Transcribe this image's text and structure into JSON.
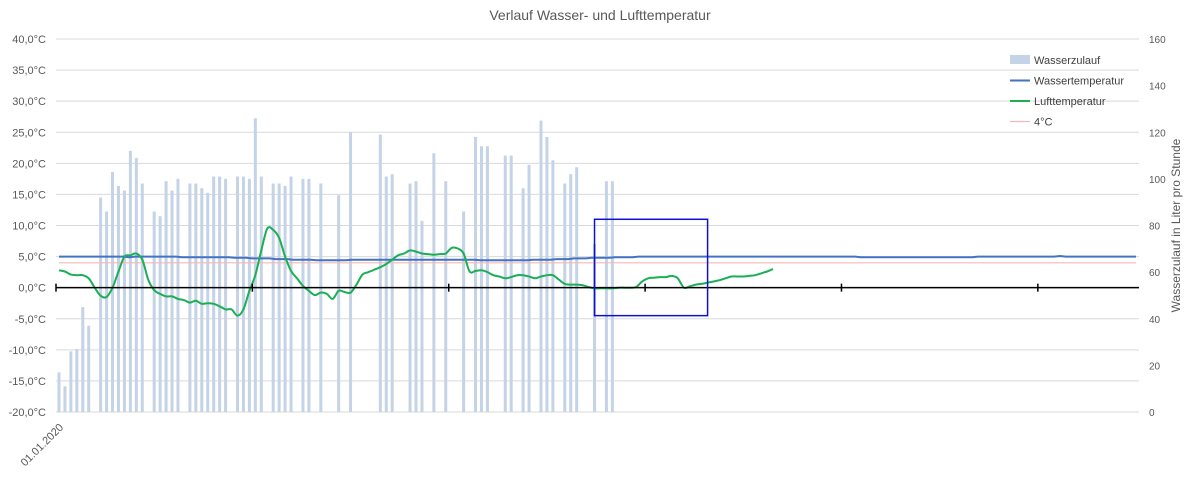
{
  "chart_data": {
    "type": "bar+line",
    "title": "Verlauf Wasser- und Lufttemperatur",
    "y2label": "Wasserzulauf in Liter pro Stunde",
    "ylim": [
      -20,
      40
    ],
    "y2lim": [
      0,
      160
    ],
    "yticks": [
      "40,0°C",
      "35,0°C",
      "30,0°C",
      "25,0°C",
      "20,0°C",
      "15,0°C",
      "10,0°C",
      "5,0°C",
      "0,0°C",
      "-5,0°C",
      "-10,0°C",
      "-15,0°C",
      "-20,0°C"
    ],
    "y2ticks": [
      "160",
      "140",
      "120",
      "100",
      "80",
      "60",
      "40",
      "20",
      "0"
    ],
    "xticks": [
      "01.01.2020"
    ],
    "grid": true,
    "legend_position": "top-right",
    "colors": {
      "wasserzulauf": "#c5d3e6",
      "wassertemperatur": "#4472c4",
      "lufttemperatur": "#1aaf54",
      "vier_grad": "#f4b8b8",
      "highlight": "#1010d0"
    },
    "series": [
      {
        "name": "Wasserzulauf",
        "axis": "right",
        "kind": "bar",
        "values": [
          17,
          11,
          26,
          27,
          45,
          37,
          0,
          92,
          86,
          103,
          97,
          95,
          112,
          109,
          98,
          0,
          86,
          84,
          99,
          95,
          100,
          0,
          98,
          98,
          96,
          94,
          101,
          101,
          100,
          0,
          101,
          101,
          100,
          126,
          101,
          0,
          98,
          98,
          97,
          101,
          0,
          100,
          100,
          0,
          98,
          0,
          0,
          93,
          0,
          120,
          0,
          0,
          0,
          0,
          119,
          101,
          102,
          0,
          0,
          98,
          99,
          82,
          0,
          111,
          0,
          99,
          0,
          0,
          86,
          0,
          118,
          114,
          114,
          0,
          0,
          110,
          110,
          0,
          96,
          106,
          0,
          125,
          118,
          108,
          0,
          98,
          102,
          105,
          0,
          0,
          72,
          0,
          99,
          99,
          0,
          0,
          0,
          0,
          0,
          0,
          0,
          0,
          0,
          0,
          0,
          0,
          0,
          0,
          0,
          0,
          0,
          0,
          0,
          0,
          0,
          0,
          0,
          0,
          0,
          0,
          0,
          0,
          0,
          0,
          0,
          0,
          0,
          0,
          0,
          0,
          0,
          0,
          0,
          0,
          0,
          0,
          0,
          0,
          0,
          0,
          0,
          0,
          0,
          0,
          0,
          0,
          0,
          0,
          0,
          0,
          0,
          0,
          0,
          0,
          0,
          0,
          0,
          0,
          0,
          0,
          0,
          0,
          0,
          0,
          0,
          0,
          0,
          0,
          0,
          0,
          0,
          0,
          0,
          0,
          0
        ]
      },
      {
        "name": "Wassertemperatur",
        "axis": "left",
        "kind": "line",
        "values": [
          5.0,
          5.0,
          5.0,
          5.0,
          5.0,
          5.0,
          5.0,
          5.0,
          5.0,
          5.0,
          5.0,
          5.0,
          4.9,
          5.0,
          5.0,
          5.0,
          5.0,
          5.0,
          5.0,
          5.0,
          5.0,
          4.9,
          4.9,
          4.9,
          4.9,
          4.9,
          4.9,
          4.9,
          4.9,
          4.9,
          4.8,
          4.8,
          4.8,
          4.7,
          4.7,
          4.7,
          4.7,
          4.6,
          4.6,
          4.6,
          4.5,
          4.5,
          4.5,
          4.5,
          4.4,
          4.4,
          4.4,
          4.4,
          4.4,
          4.4,
          4.5,
          4.5,
          4.5,
          4.5,
          4.5,
          4.5,
          4.5,
          4.5,
          4.5,
          4.5,
          4.5,
          4.5,
          4.5,
          4.5,
          4.5,
          4.5,
          4.5,
          4.5,
          4.5,
          4.5,
          4.5,
          4.5,
          4.4,
          4.4,
          4.4,
          4.4,
          4.4,
          4.4,
          4.4,
          4.4,
          4.4,
          4.5,
          4.5,
          4.5,
          4.5,
          4.6,
          4.6,
          4.6,
          4.7,
          4.7,
          4.7,
          4.8,
          4.8,
          4.8,
          4.8,
          4.9,
          4.9,
          4.9,
          4.9,
          5.0,
          5.0,
          5.0,
          5.0,
          5.0,
          5.0,
          5.0,
          5.0,
          5.0,
          5.0,
          5.0,
          5.0,
          5.0,
          5.0,
          5.0,
          5.0,
          5.0,
          5.0,
          5.0,
          5.0,
          5.0,
          5.0,
          5.0,
          5.0,
          5.0,
          5.0,
          5.0,
          5.0,
          5.0,
          5.0,
          5.0,
          5.0,
          5.0,
          5.0,
          5.0,
          5.0,
          5.0,
          5.0,
          4.9,
          4.9,
          4.9,
          4.9,
          4.9,
          4.9,
          4.9,
          4.9,
          4.9,
          4.9,
          4.9,
          4.9,
          4.9,
          4.9,
          4.9,
          4.9,
          4.9,
          4.9,
          4.9,
          4.9,
          5.0,
          5.0,
          5.0,
          5.0,
          5.0,
          5.0,
          5.0,
          5.0,
          5.0,
          5.0,
          5.0,
          5.0,
          5.0,
          5.0,
          5.1,
          5.0,
          5.0,
          5.0,
          5.0,
          5.0,
          5.0,
          5.0,
          5.0,
          5.0,
          5.0,
          5.0,
          5.0,
          5.0
        ]
      },
      {
        "name": "Lufttemperatur",
        "axis": "left",
        "kind": "line",
        "smooth": true,
        "values": [
          2.8,
          2.6,
          2.1,
          2.0,
          2.0,
          1.5,
          0.0,
          -1.3,
          -1.5,
          0.0,
          2.6,
          5.0,
          5.2,
          5.5,
          4.5,
          1.3,
          -0.4,
          -1.0,
          -1.4,
          -1.4,
          -1.8,
          -2.0,
          -2.4,
          -2.1,
          -2.6,
          -2.5,
          -2.6,
          -3.0,
          -3.5,
          -3.5,
          -4.5,
          -3.5,
          -0.5,
          2.0,
          6.0,
          9.5,
          9.3,
          8.0,
          5.0,
          2.7,
          1.5,
          0.3,
          -0.5,
          -1.2,
          -0.8,
          -1.0,
          -1.8,
          -0.5,
          -0.7,
          -0.8,
          0.5,
          2.1,
          2.5,
          2.9,
          3.3,
          3.8,
          4.5,
          5.2,
          5.5,
          6.0,
          5.8,
          5.5,
          5.4,
          5.3,
          5.4,
          5.5,
          6.4,
          6.3,
          5.5,
          2.6,
          2.7,
          2.8,
          2.5,
          2.0,
          1.8,
          1.5,
          1.7,
          2.0,
          2.0,
          1.8,
          1.5,
          1.8,
          2.0,
          2.0,
          1.3,
          0.6,
          0.5,
          0.5,
          0.4,
          0.1,
          -0.1,
          -0.1,
          -0.1,
          -0.1,
          0.0,
          0.0,
          0.0,
          0.1,
          1.0,
          1.5,
          1.6,
          1.7,
          1.7,
          1.9,
          1.5,
          0.0,
          0.2,
          0.5,
          0.6,
          0.8,
          1.0,
          1.2,
          1.5,
          1.8,
          1.8,
          1.8,
          1.9,
          2.0,
          2.3,
          2.6,
          3.0
        ]
      },
      {
        "name": "4°C",
        "axis": "left",
        "kind": "line",
        "values": [
          4,
          4
        ]
      }
    ],
    "annotations": [
      {
        "type": "rectangle",
        "x_range": [
          90,
          109
        ],
        "y_range": [
          -4.5,
          11.0
        ]
      }
    ]
  }
}
